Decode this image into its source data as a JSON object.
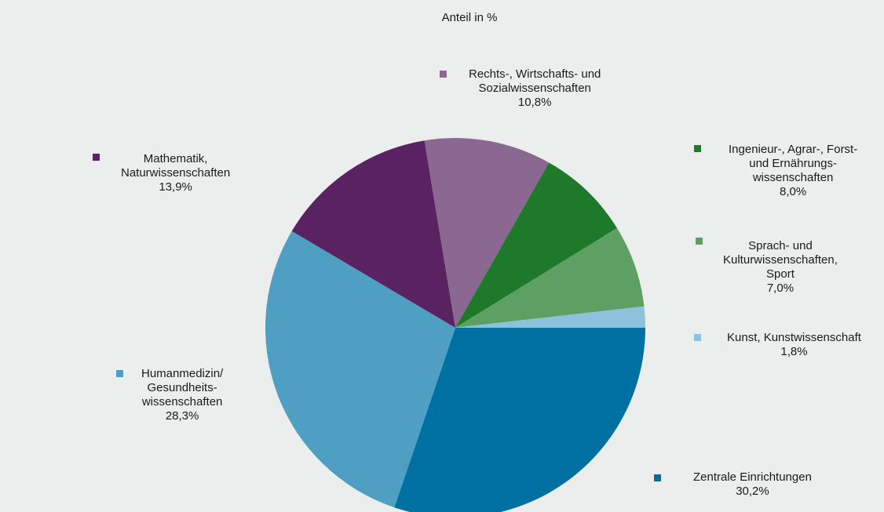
{
  "chart_data": {
    "type": "pie",
    "title": "Anteil in %",
    "start_angle_deg": 90,
    "direction": "clockwise",
    "slices": [
      {
        "key": "zentral",
        "label_lines": [
          "Zentrale Einrichtungen"
        ],
        "value": 30.2,
        "value_label": "30,2%",
        "color": "#0070a3"
      },
      {
        "key": "human",
        "label_lines": [
          "Humanmedizin/",
          "Gesundheits-",
          "wissenschaften"
        ],
        "value": 28.3,
        "value_label": "28,3%",
        "color": "#4f9fc2"
      },
      {
        "key": "mathe",
        "label_lines": [
          "Mathematik,",
          "Naturwissenschaften"
        ],
        "value": 13.9,
        "value_label": "13,9%",
        "color": "#5a2260"
      },
      {
        "key": "rechts",
        "label_lines": [
          "Rechts-, Wirtschafts- und",
          "Sozialwissenschaften"
        ],
        "value": 10.8,
        "value_label": "10,8%",
        "color": "#8a6891"
      },
      {
        "key": "ingenieur",
        "label_lines": [
          "Ingenieur-, Agrar-, Forst-",
          "und Ernährungs-",
          "wissenschaften"
        ],
        "value": 8.0,
        "value_label": "8,0%",
        "color": "#1e7a2a"
      },
      {
        "key": "sprach",
        "label_lines": [
          "Sprach- und",
          "Kulturwissenschaften,",
          "Sport"
        ],
        "value": 7.0,
        "value_label": "7,0%",
        "color": "#5e9f64"
      },
      {
        "key": "kunst",
        "label_lines": [
          "Kunst, Kunstwissenschaft"
        ],
        "value": 1.8,
        "value_label": "1,8%",
        "color": "#8ec1db"
      }
    ]
  }
}
